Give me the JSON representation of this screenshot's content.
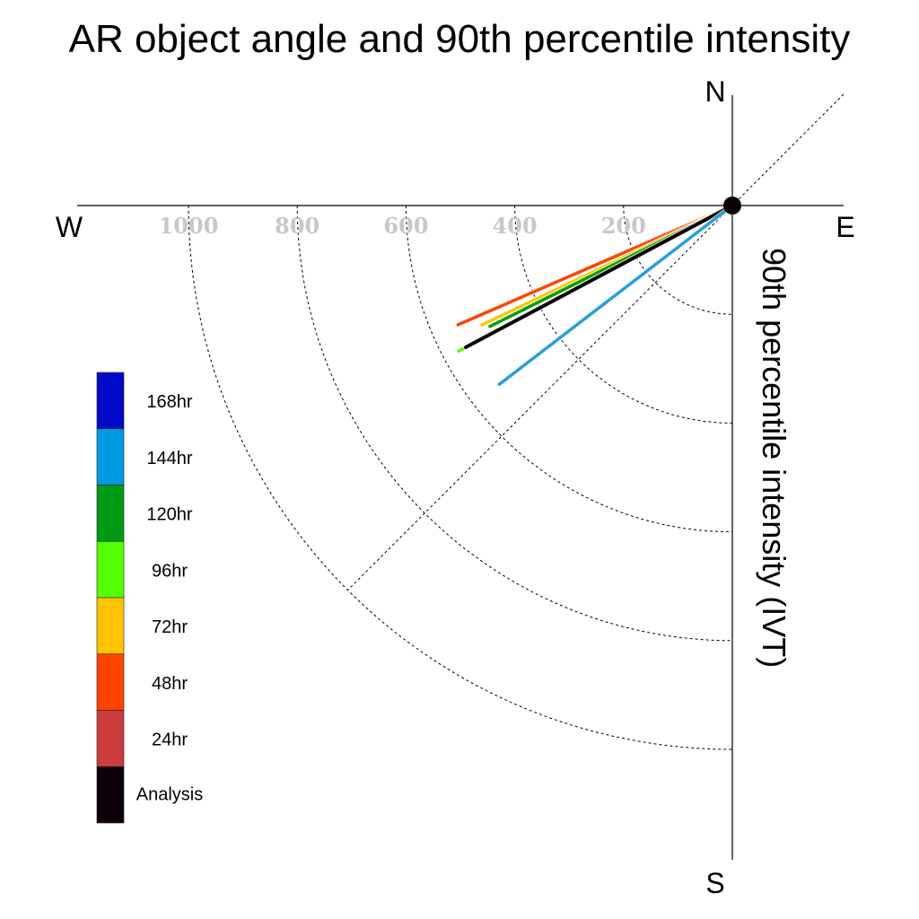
{
  "chart_data": {
    "type": "polar-vector",
    "title": "AR object angle and 90th percentile intensity",
    "ylabel": "90th percentile intensity (IVT)",
    "compass": {
      "north": "N",
      "south": "S",
      "east": "E",
      "west": "W"
    },
    "radial_ticks": [
      "200",
      "400",
      "600",
      "800",
      "1000"
    ],
    "radial_tick_values": [
      200,
      400,
      600,
      800,
      1000
    ],
    "r_max": 1200,
    "series": [
      {
        "name": "48hr",
        "color": "#ff4400",
        "angle_deg": 246.5,
        "intensity": 550
      },
      {
        "name": "72hr",
        "color": "#ffc400",
        "angle_deg": 244.5,
        "intensity": 510
      },
      {
        "name": "120hr",
        "color": "#00a000",
        "angle_deg": 243.5,
        "intensity": 498
      },
      {
        "name": "96hr",
        "color": "#55ff00",
        "angle_deg": 242.0,
        "intensity": 570
      },
      {
        "name": "Analysis",
        "color": "#0b0008",
        "angle_deg": 242.0,
        "intensity": 555
      },
      {
        "name": "144hr",
        "color": "#2a9ed8",
        "angle_deg": 232.5,
        "intensity": 540
      }
    ],
    "legend": [
      {
        "label": "168hr",
        "color": "#000ac8"
      },
      {
        "label": "144hr",
        "color": "#009be1"
      },
      {
        "label": "120hr",
        "color": "#009a14"
      },
      {
        "label": "96hr",
        "color": "#55ff00"
      },
      {
        "label": "72hr",
        "color": "#ffc400"
      },
      {
        "label": "48hr",
        "color": "#ff4400"
      },
      {
        "label": "24hr",
        "color": "#cc3c3c"
      },
      {
        "label": "Analysis",
        "color": "#0b0008"
      }
    ]
  }
}
